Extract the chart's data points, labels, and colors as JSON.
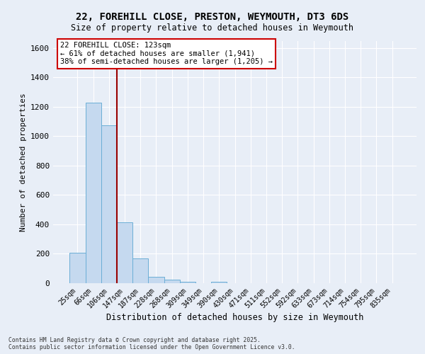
{
  "title_line1": "22, FOREHILL CLOSE, PRESTON, WEYMOUTH, DT3 6DS",
  "title_line2": "Size of property relative to detached houses in Weymouth",
  "xlabel": "Distribution of detached houses by size in Weymouth",
  "ylabel": "Number of detached properties",
  "categories": [
    "25sqm",
    "66sqm",
    "106sqm",
    "147sqm",
    "187sqm",
    "228sqm",
    "268sqm",
    "309sqm",
    "349sqm",
    "390sqm",
    "430sqm",
    "471sqm",
    "511sqm",
    "552sqm",
    "592sqm",
    "633sqm",
    "673sqm",
    "714sqm",
    "754sqm",
    "795sqm",
    "835sqm"
  ],
  "values": [
    205,
    1230,
    1075,
    415,
    170,
    45,
    25,
    12,
    0,
    12,
    0,
    0,
    0,
    0,
    0,
    0,
    0,
    0,
    0,
    0,
    0
  ],
  "bar_color": "#c5d9ef",
  "bar_edge_color": "#6baed6",
  "ylim": [
    0,
    1650
  ],
  "yticks": [
    0,
    200,
    400,
    600,
    800,
    1000,
    1200,
    1400,
    1600
  ],
  "red_line_x": 2.5,
  "annotation_title": "22 FOREHILL CLOSE: 123sqm",
  "annotation_line2": "← 61% of detached houses are smaller (1,941)",
  "annotation_line3": "38% of semi-detached houses are larger (1,205) →",
  "annotation_box_color": "#ffffff",
  "annotation_box_edge": "#cc0000",
  "footer_line1": "Contains HM Land Registry data © Crown copyright and database right 2025.",
  "footer_line2": "Contains public sector information licensed under the Open Government Licence v3.0.",
  "background_color": "#e8eef7",
  "plot_bg_color": "#e8eef7",
  "grid_color": "#ffffff"
}
